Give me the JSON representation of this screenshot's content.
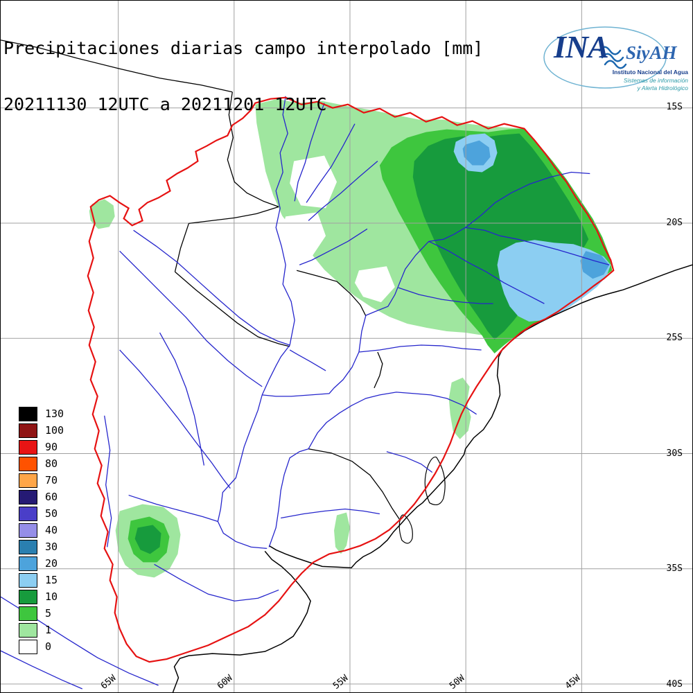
{
  "title": {
    "line1": "Precipitaciones diarias campo interpolado [mm]",
    "line2": "20211130 12UTC a 20211201 12UTC"
  },
  "logo": {
    "acronym": "INA",
    "product": "SiyAH",
    "org": "Instituto Nacional del Agua",
    "tagline1": "Sistemas de información",
    "tagline2": "y Alerta Hidrológico"
  },
  "axes": {
    "lat": [
      "15S",
      "20S",
      "25S",
      "30S",
      "35S",
      "40S"
    ],
    "lon": [
      "65W",
      "60W",
      "55W",
      "50W",
      "45W"
    ]
  },
  "legend": {
    "entries": [
      {
        "label": "130",
        "color": "#000000"
      },
      {
        "label": "100",
        "color": "#8f1414"
      },
      {
        "label": "90",
        "color": "#e81414"
      },
      {
        "label": "80",
        "color": "#ff5200"
      },
      {
        "label": "70",
        "color": "#ffa648"
      },
      {
        "label": "60",
        "color": "#251a74"
      },
      {
        "label": "50",
        "color": "#4a3ec8"
      },
      {
        "label": "40",
        "color": "#958ee8"
      },
      {
        "label": "30",
        "color": "#2a7fb0"
      },
      {
        "label": "20",
        "color": "#4da3dc"
      },
      {
        "label": "15",
        "color": "#8ccef2"
      },
      {
        "label": "10",
        "color": "#179b3d"
      },
      {
        "label": "5",
        "color": "#3ec63e"
      },
      {
        "label": "1",
        "color": "#9fe69f"
      },
      {
        "label": "0",
        "color": "#ffffff"
      }
    ]
  },
  "map_colors": {
    "grid": "#a0a0a0",
    "border": "#000000",
    "river": "#2525cc",
    "basin": "#e61212"
  }
}
